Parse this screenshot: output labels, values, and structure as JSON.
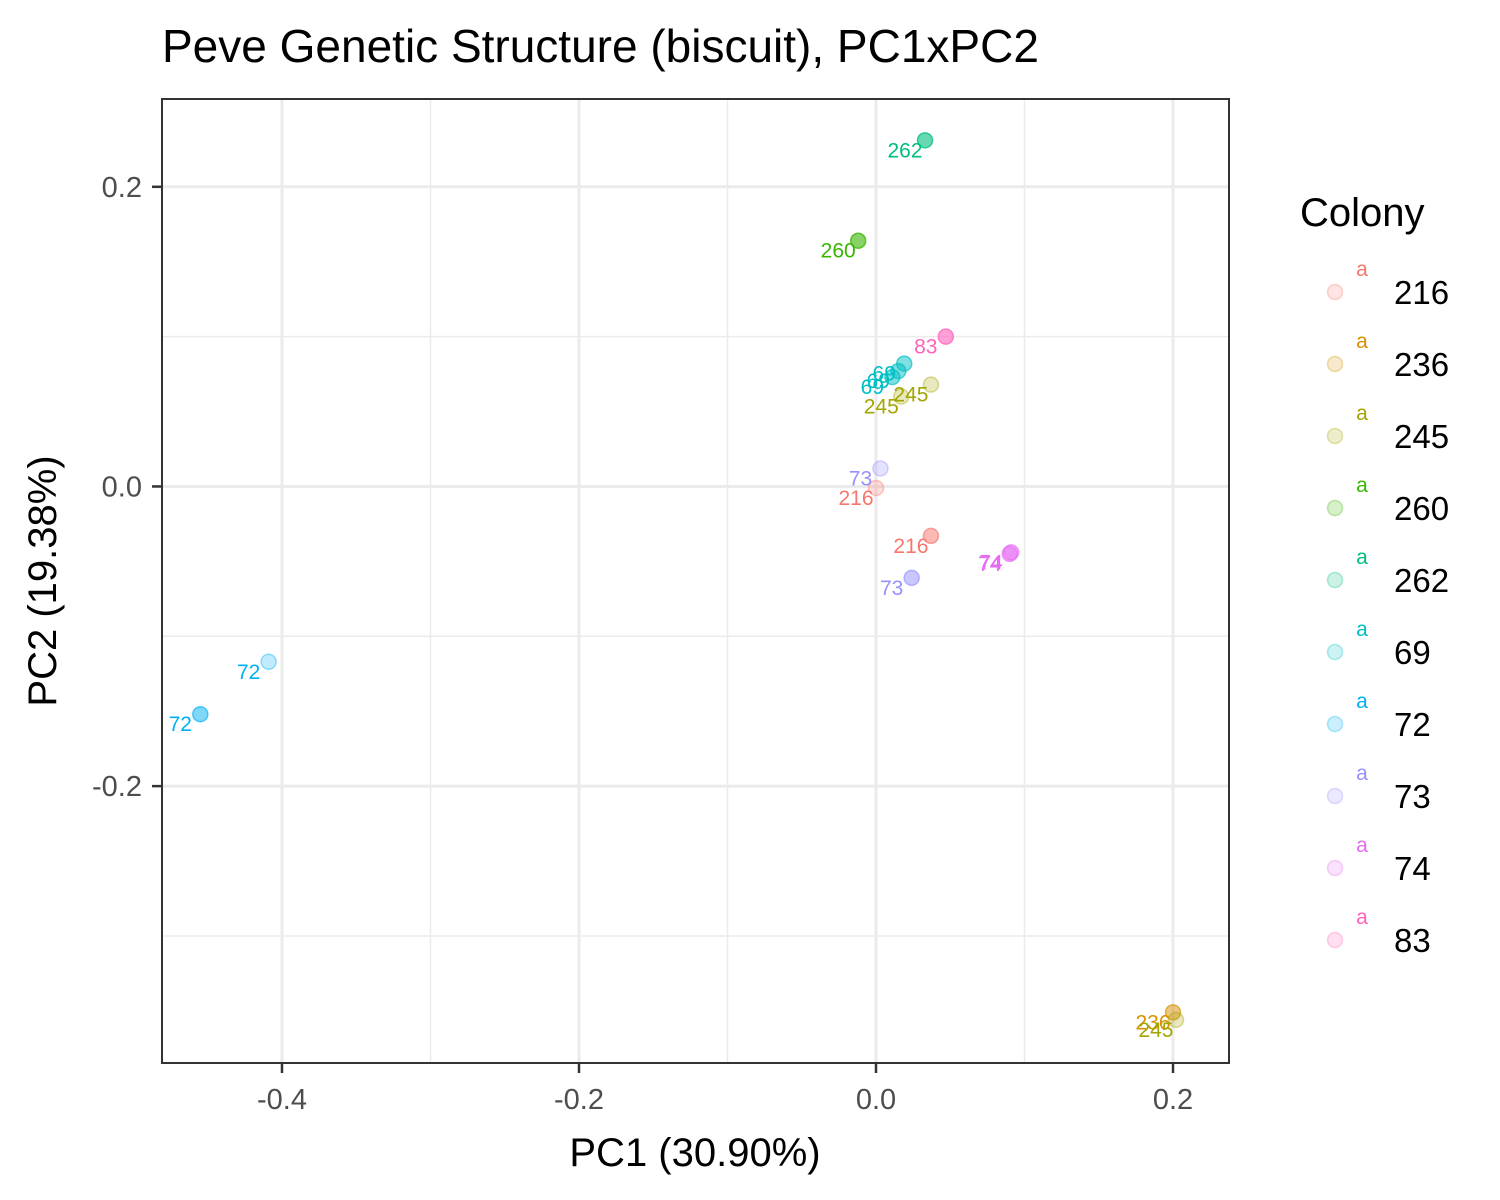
{
  "chart_data": {
    "type": "scatter",
    "title": "Peve Genetic Structure (biscuit), PC1xPC2",
    "xlabel": "PC1 (30.90%)",
    "ylabel": "PC2 (19.38%)",
    "xlim": [
      -0.4808,
      0.2377
    ],
    "ylim": [
      -0.3848,
      0.2586
    ],
    "x_ticks": [
      {
        "value": -0.4,
        "label": "-0.4"
      },
      {
        "value": -0.2,
        "label": "-0.2"
      },
      {
        "value": 0.0,
        "label": "0.0"
      },
      {
        "value": 0.2,
        "label": "0.2"
      }
    ],
    "x_minor": [
      -0.3,
      -0.1,
      0.1
    ],
    "y_ticks": [
      {
        "value": -0.2,
        "label": "-0.2"
      },
      {
        "value": 0.0,
        "label": "0.0"
      },
      {
        "value": 0.2,
        "label": "0.2"
      }
    ],
    "y_minor": [
      -0.3,
      -0.1,
      0.1
    ],
    "grid": true,
    "legend": {
      "title": "Colony",
      "placement": "right",
      "key_letter": "a"
    },
    "series": [
      {
        "name": "216",
        "color": "#F8766D",
        "points": [
          {
            "x": 0.0,
            "y": -0.001,
            "label": "216",
            "alpha": 0.25
          },
          {
            "x": 0.037,
            "y": -0.033,
            "label": "216",
            "alpha": 0.5
          }
        ]
      },
      {
        "name": "236",
        "color": "#D89000",
        "points": [
          {
            "x": 0.2,
            "y": -0.351,
            "label": "236",
            "alpha": 0.5
          }
        ]
      },
      {
        "name": "245",
        "color": "#A3A500",
        "points": [
          {
            "x": 0.037,
            "y": 0.068,
            "label": "245",
            "alpha": 0.25
          },
          {
            "x": 0.017,
            "y": 0.06,
            "label": "245",
            "alpha": 0.25
          },
          {
            "x": 0.202,
            "y": -0.356,
            "label": "245",
            "alpha": 0.25
          }
        ]
      },
      {
        "name": "260",
        "color": "#39B600",
        "points": [
          {
            "x": -0.012,
            "y": 0.164,
            "label": "260",
            "alpha": 0.6
          }
        ]
      },
      {
        "name": "262",
        "color": "#00BF7D",
        "points": [
          {
            "x": 0.033,
            "y": 0.231,
            "label": "262",
            "alpha": 0.6
          }
        ]
      },
      {
        "name": "69",
        "color": "#00BFC4",
        "points": [
          {
            "x": 0.019,
            "y": 0.082,
            "label": "69",
            "alpha": 0.5
          },
          {
            "x": 0.015,
            "y": 0.077,
            "label": "69",
            "alpha": 0.5
          },
          {
            "x": 0.011,
            "y": 0.073,
            "label": "69",
            "alpha": 0.5
          }
        ]
      },
      {
        "name": "72",
        "color": "#00B0F6",
        "points": [
          {
            "x": -0.409,
            "y": -0.117,
            "label": "72",
            "alpha": 0.25
          },
          {
            "x": -0.455,
            "y": -0.152,
            "label": "72",
            "alpha": 0.5
          }
        ]
      },
      {
        "name": "73",
        "color": "#9590FF",
        "points": [
          {
            "x": 0.003,
            "y": 0.012,
            "label": "73",
            "alpha": 0.25
          },
          {
            "x": 0.024,
            "y": -0.061,
            "label": "73",
            "alpha": 0.5
          }
        ]
      },
      {
        "name": "74",
        "color": "#E76BF3",
        "points": [
          {
            "x": 0.091,
            "y": -0.044,
            "label": "74",
            "alpha": 0.5
          },
          {
            "x": 0.09,
            "y": -0.045,
            "label": "74",
            "alpha": 0.5
          }
        ]
      },
      {
        "name": "83",
        "color": "#FF62BC",
        "points": [
          {
            "x": 0.047,
            "y": 0.1,
            "label": "83",
            "alpha": 0.6
          }
        ]
      }
    ]
  }
}
